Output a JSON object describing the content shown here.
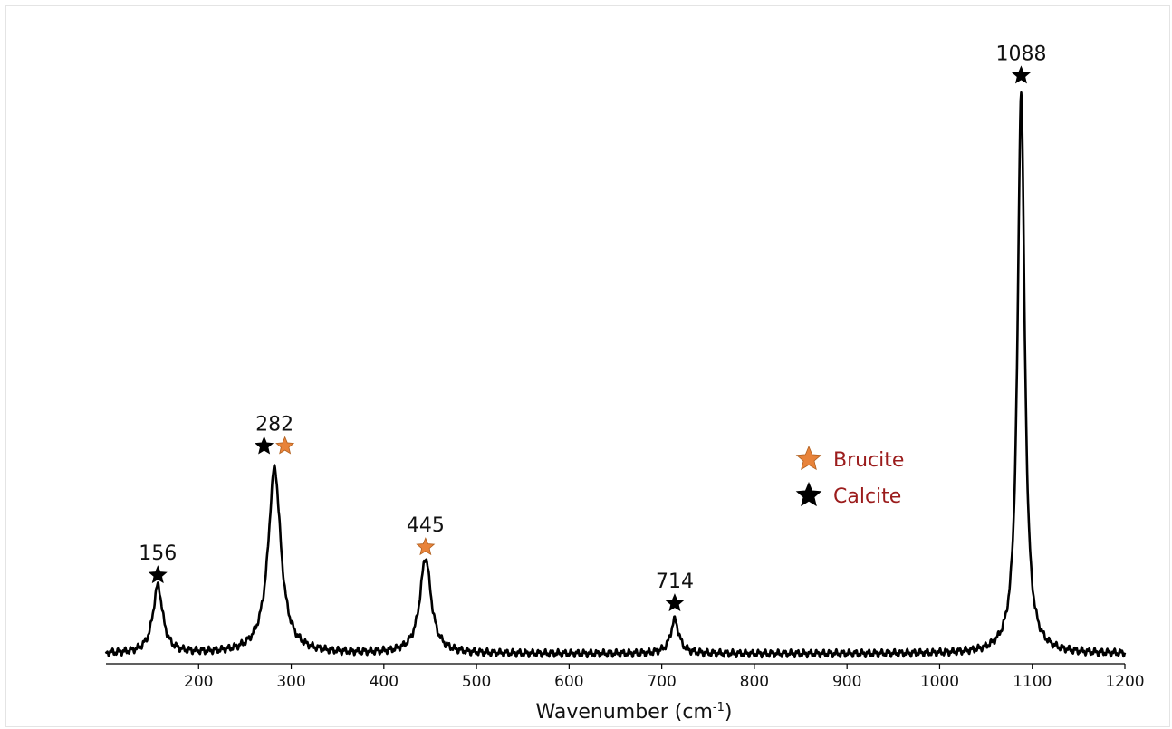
{
  "chart_data": {
    "type": "line",
    "xlabel": "Wavenumber (cm",
    "xlabel_sup": "-1",
    "xlabel_end": ")",
    "xlim": [
      100,
      1200
    ],
    "ylim": [
      0,
      1
    ],
    "grid": false,
    "x_ticks": [
      200,
      300,
      400,
      500,
      600,
      700,
      800,
      900,
      1000,
      1100,
      1200
    ],
    "x_tick_labels": [
      "200",
      "300",
      "400",
      "500",
      "600",
      "700",
      "800",
      "900",
      "1000",
      "1100",
      "1200"
    ],
    "colors": {
      "line": "#000000",
      "brucite": "#e8833a",
      "calcite": "#000000",
      "legend_text": "#9b1c1c"
    },
    "baseline": 0.0,
    "peaks": [
      {
        "x": 156,
        "height": 0.12,
        "width": 7
      },
      {
        "x": 282,
        "height": 0.33,
        "width": 9
      },
      {
        "x": 445,
        "height": 0.17,
        "width": 8
      },
      {
        "x": 714,
        "height": 0.06,
        "width": 6
      },
      {
        "x": 1088,
        "height": 1.0,
        "width": 5
      }
    ],
    "annotations": [
      {
        "label": "156",
        "x": 156,
        "y": 0.14,
        "markers": [
          "calcite"
        ]
      },
      {
        "label": "282",
        "x": 282,
        "y": 0.37,
        "markers": [
          "calcite",
          "brucite"
        ]
      },
      {
        "label": "445",
        "x": 445,
        "y": 0.19,
        "markers": [
          "brucite"
        ]
      },
      {
        "label": "714",
        "x": 714,
        "y": 0.09,
        "markers": [
          "calcite"
        ]
      },
      {
        "label": "1088",
        "x": 1088,
        "y": 1.03,
        "markers": [
          "calcite"
        ]
      }
    ],
    "legend": {
      "position": "center-right",
      "entries": [
        {
          "label": "Brucite",
          "marker": "brucite"
        },
        {
          "label": "Calcite",
          "marker": "calcite"
        }
      ]
    }
  }
}
